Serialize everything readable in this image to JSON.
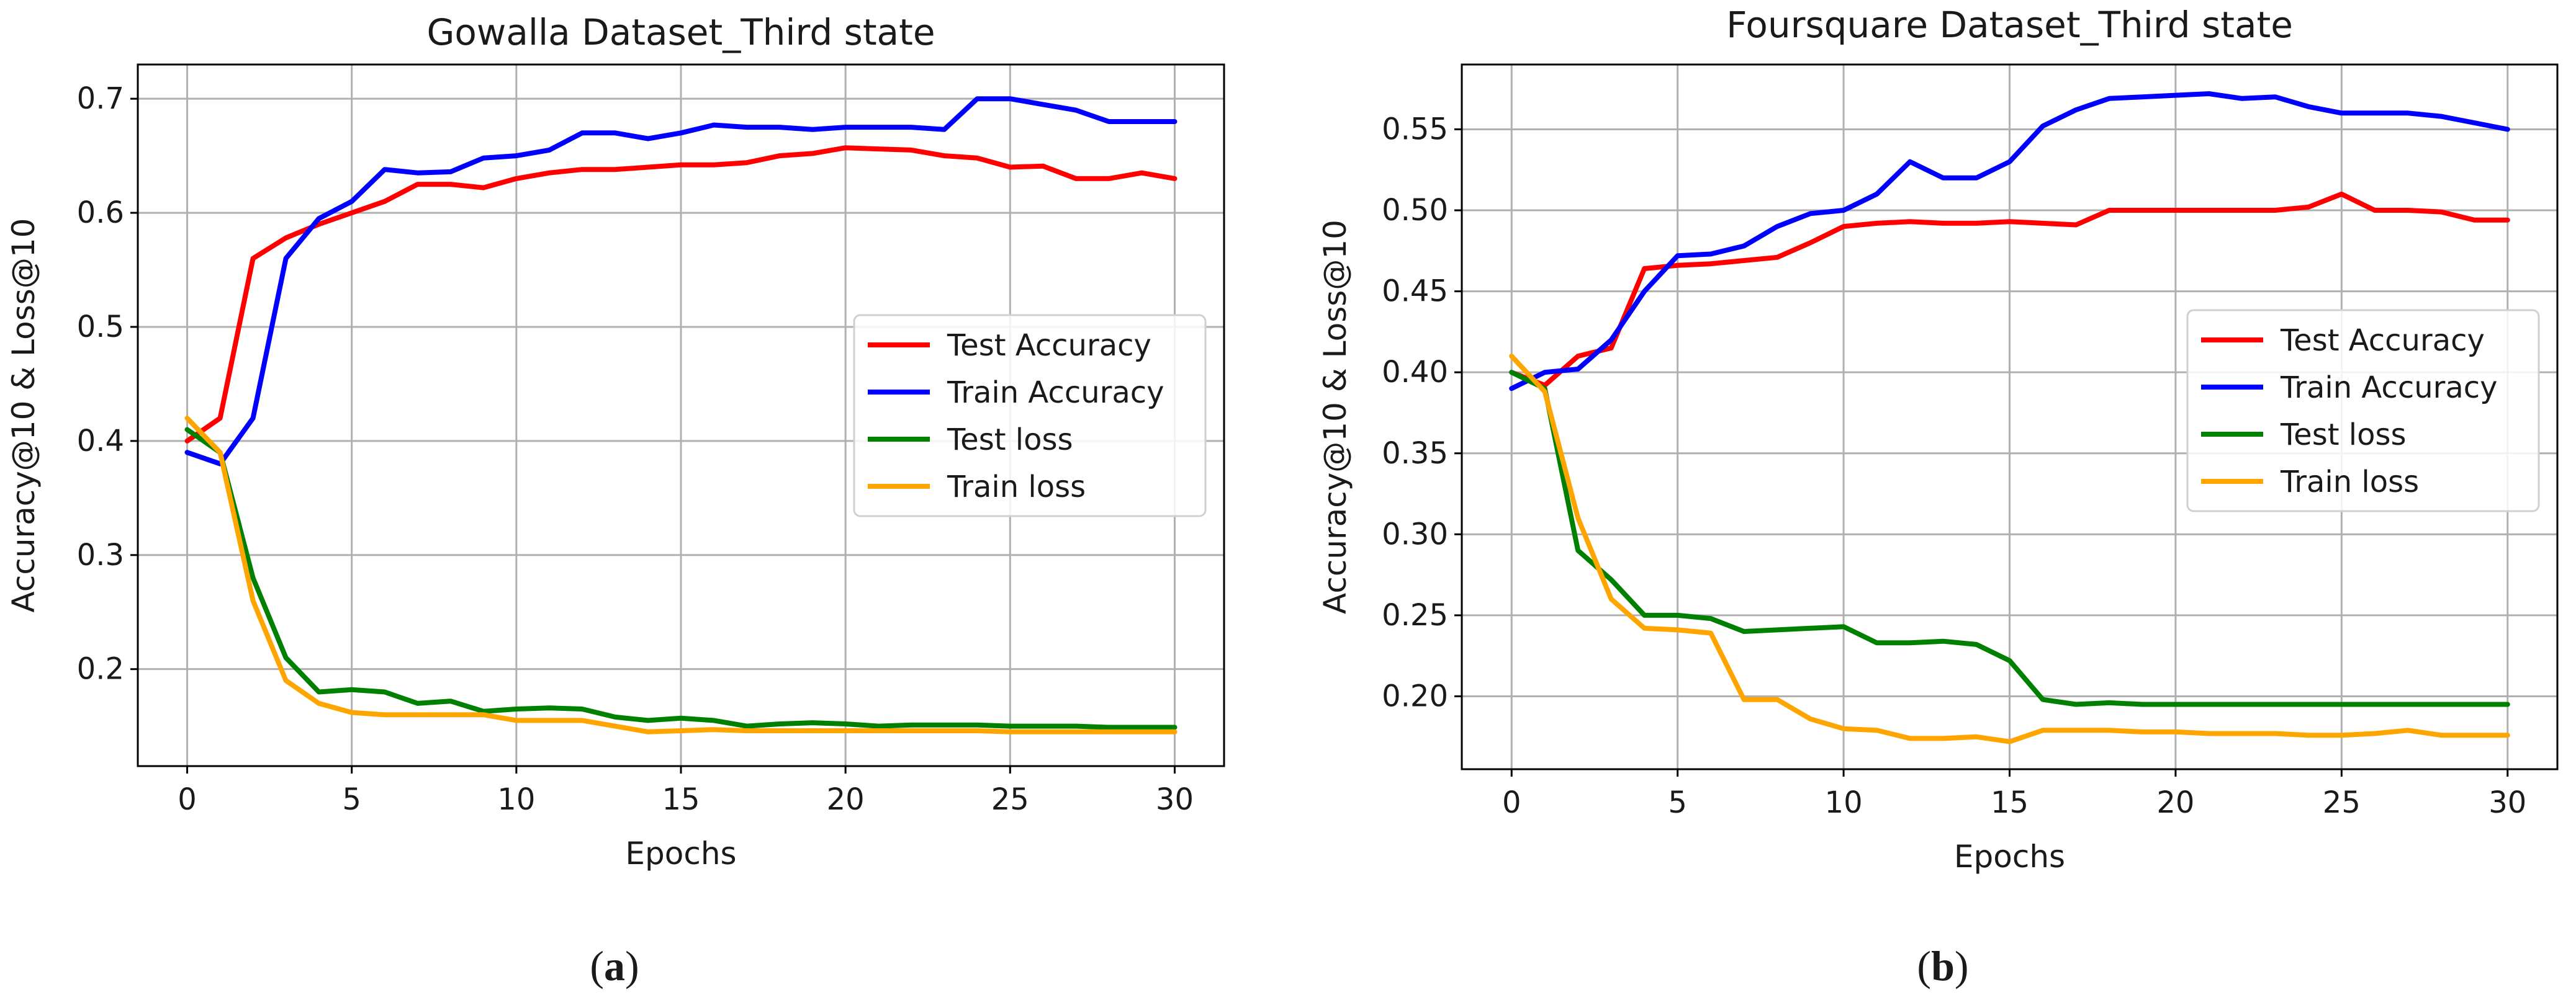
{
  "chart_data": [
    {
      "type": "line",
      "title": "Gowalla Dataset_Third state",
      "xlabel": "Epochs",
      "ylabel": "Accuracy@10 & Loss@10",
      "caption": "a",
      "xlim": [
        -1.5,
        31.5
      ],
      "ylim": [
        0.115,
        0.73
      ],
      "xticks": [
        "0",
        "5",
        "10",
        "15",
        "20",
        "25",
        "30"
      ],
      "yticks": [
        "0.2",
        "0.3",
        "0.4",
        "0.5",
        "0.6",
        "0.7"
      ],
      "grid": true,
      "legend_position": "center-right",
      "x": [
        0,
        1,
        2,
        3,
        4,
        5,
        6,
        7,
        8,
        9,
        10,
        11,
        12,
        13,
        14,
        15,
        16,
        17,
        18,
        19,
        20,
        21,
        22,
        23,
        24,
        25,
        26,
        27,
        28,
        29,
        30
      ],
      "series": [
        {
          "name": "Test Accuracy",
          "color": "#ff0000",
          "values": [
            0.4,
            0.42,
            0.56,
            0.578,
            0.59,
            0.6,
            0.61,
            0.625,
            0.625,
            0.622,
            0.63,
            0.635,
            0.638,
            0.638,
            0.64,
            0.642,
            0.642,
            0.644,
            0.65,
            0.652,
            0.657,
            0.656,
            0.655,
            0.65,
            0.648,
            0.64,
            0.641,
            0.63,
            0.63,
            0.635,
            0.63
          ]
        },
        {
          "name": "Train Accuracy",
          "color": "#0000ff",
          "values": [
            0.39,
            0.38,
            0.42,
            0.56,
            0.595,
            0.61,
            0.638,
            0.635,
            0.636,
            0.648,
            0.65,
            0.655,
            0.67,
            0.67,
            0.665,
            0.67,
            0.677,
            0.675,
            0.675,
            0.673,
            0.675,
            0.675,
            0.675,
            0.673,
            0.7,
            0.7,
            0.695,
            0.69,
            0.68,
            0.68,
            0.68
          ]
        },
        {
          "name": "Test loss",
          "color": "#008000",
          "values": [
            0.41,
            0.39,
            0.28,
            0.21,
            0.18,
            0.182,
            0.18,
            0.17,
            0.172,
            0.163,
            0.165,
            0.166,
            0.165,
            0.158,
            0.155,
            0.157,
            0.155,
            0.15,
            0.152,
            0.153,
            0.152,
            0.15,
            0.151,
            0.151,
            0.151,
            0.15,
            0.15,
            0.15,
            0.149,
            0.149,
            0.149
          ]
        },
        {
          "name": "Train loss",
          "color": "#ffa500",
          "values": [
            0.42,
            0.39,
            0.26,
            0.19,
            0.17,
            0.162,
            0.16,
            0.16,
            0.16,
            0.16,
            0.155,
            0.155,
            0.155,
            0.15,
            0.145,
            0.146,
            0.147,
            0.146,
            0.146,
            0.146,
            0.146,
            0.146,
            0.146,
            0.146,
            0.146,
            0.145,
            0.145,
            0.145,
            0.145,
            0.145,
            0.145
          ]
        }
      ]
    },
    {
      "type": "line",
      "title": "Foursquare Dataset_Third state",
      "xlabel": "Epochs",
      "ylabel": "Accuracy@10 & Loss@10",
      "caption": "b",
      "xlim": [
        -1.5,
        31.5
      ],
      "ylim": [
        0.155,
        0.59
      ],
      "xticks": [
        "0",
        "5",
        "10",
        "15",
        "20",
        "25",
        "30"
      ],
      "yticks": [
        "0.20",
        "0.25",
        "0.30",
        "0.35",
        "0.40",
        "0.45",
        "0.50",
        "0.55"
      ],
      "grid": true,
      "legend_position": "center-right",
      "x": [
        0,
        1,
        2,
        3,
        4,
        5,
        6,
        7,
        8,
        9,
        10,
        11,
        12,
        13,
        14,
        15,
        16,
        17,
        18,
        19,
        20,
        21,
        22,
        23,
        24,
        25,
        26,
        27,
        28,
        29,
        30
      ],
      "series": [
        {
          "name": "Test Accuracy",
          "color": "#ff0000",
          "values": [
            0.4,
            0.392,
            0.41,
            0.415,
            0.464,
            0.466,
            0.467,
            0.469,
            0.471,
            0.48,
            0.49,
            0.492,
            0.493,
            0.492,
            0.492,
            0.493,
            0.492,
            0.491,
            0.5,
            0.5,
            0.5,
            0.5,
            0.5,
            0.5,
            0.502,
            0.51,
            0.5,
            0.5,
            0.499,
            0.494,
            0.494
          ]
        },
        {
          "name": "Train Accuracy",
          "color": "#0000ff",
          "values": [
            0.39,
            0.4,
            0.402,
            0.42,
            0.45,
            0.472,
            0.473,
            0.478,
            0.49,
            0.498,
            0.5,
            0.51,
            0.53,
            0.52,
            0.52,
            0.53,
            0.552,
            0.562,
            0.569,
            0.57,
            0.571,
            0.572,
            0.569,
            0.57,
            0.564,
            0.56,
            0.56,
            0.56,
            0.558,
            0.554,
            0.55
          ]
        },
        {
          "name": "Test loss",
          "color": "#008000",
          "values": [
            0.4,
            0.39,
            0.29,
            0.272,
            0.25,
            0.25,
            0.248,
            0.24,
            0.241,
            0.242,
            0.243,
            0.233,
            0.233,
            0.234,
            0.232,
            0.222,
            0.198,
            0.195,
            0.196,
            0.195,
            0.195,
            0.195,
            0.195,
            0.195,
            0.195,
            0.195,
            0.195,
            0.195,
            0.195,
            0.195,
            0.195
          ]
        },
        {
          "name": "Train loss",
          "color": "#ffa500",
          "values": [
            0.41,
            0.388,
            0.31,
            0.26,
            0.242,
            0.241,
            0.239,
            0.198,
            0.198,
            0.186,
            0.18,
            0.179,
            0.174,
            0.174,
            0.175,
            0.172,
            0.179,
            0.179,
            0.179,
            0.178,
            0.178,
            0.177,
            0.177,
            0.177,
            0.176,
            0.176,
            0.177,
            0.179,
            0.176,
            0.176,
            0.176
          ]
        }
      ]
    }
  ]
}
